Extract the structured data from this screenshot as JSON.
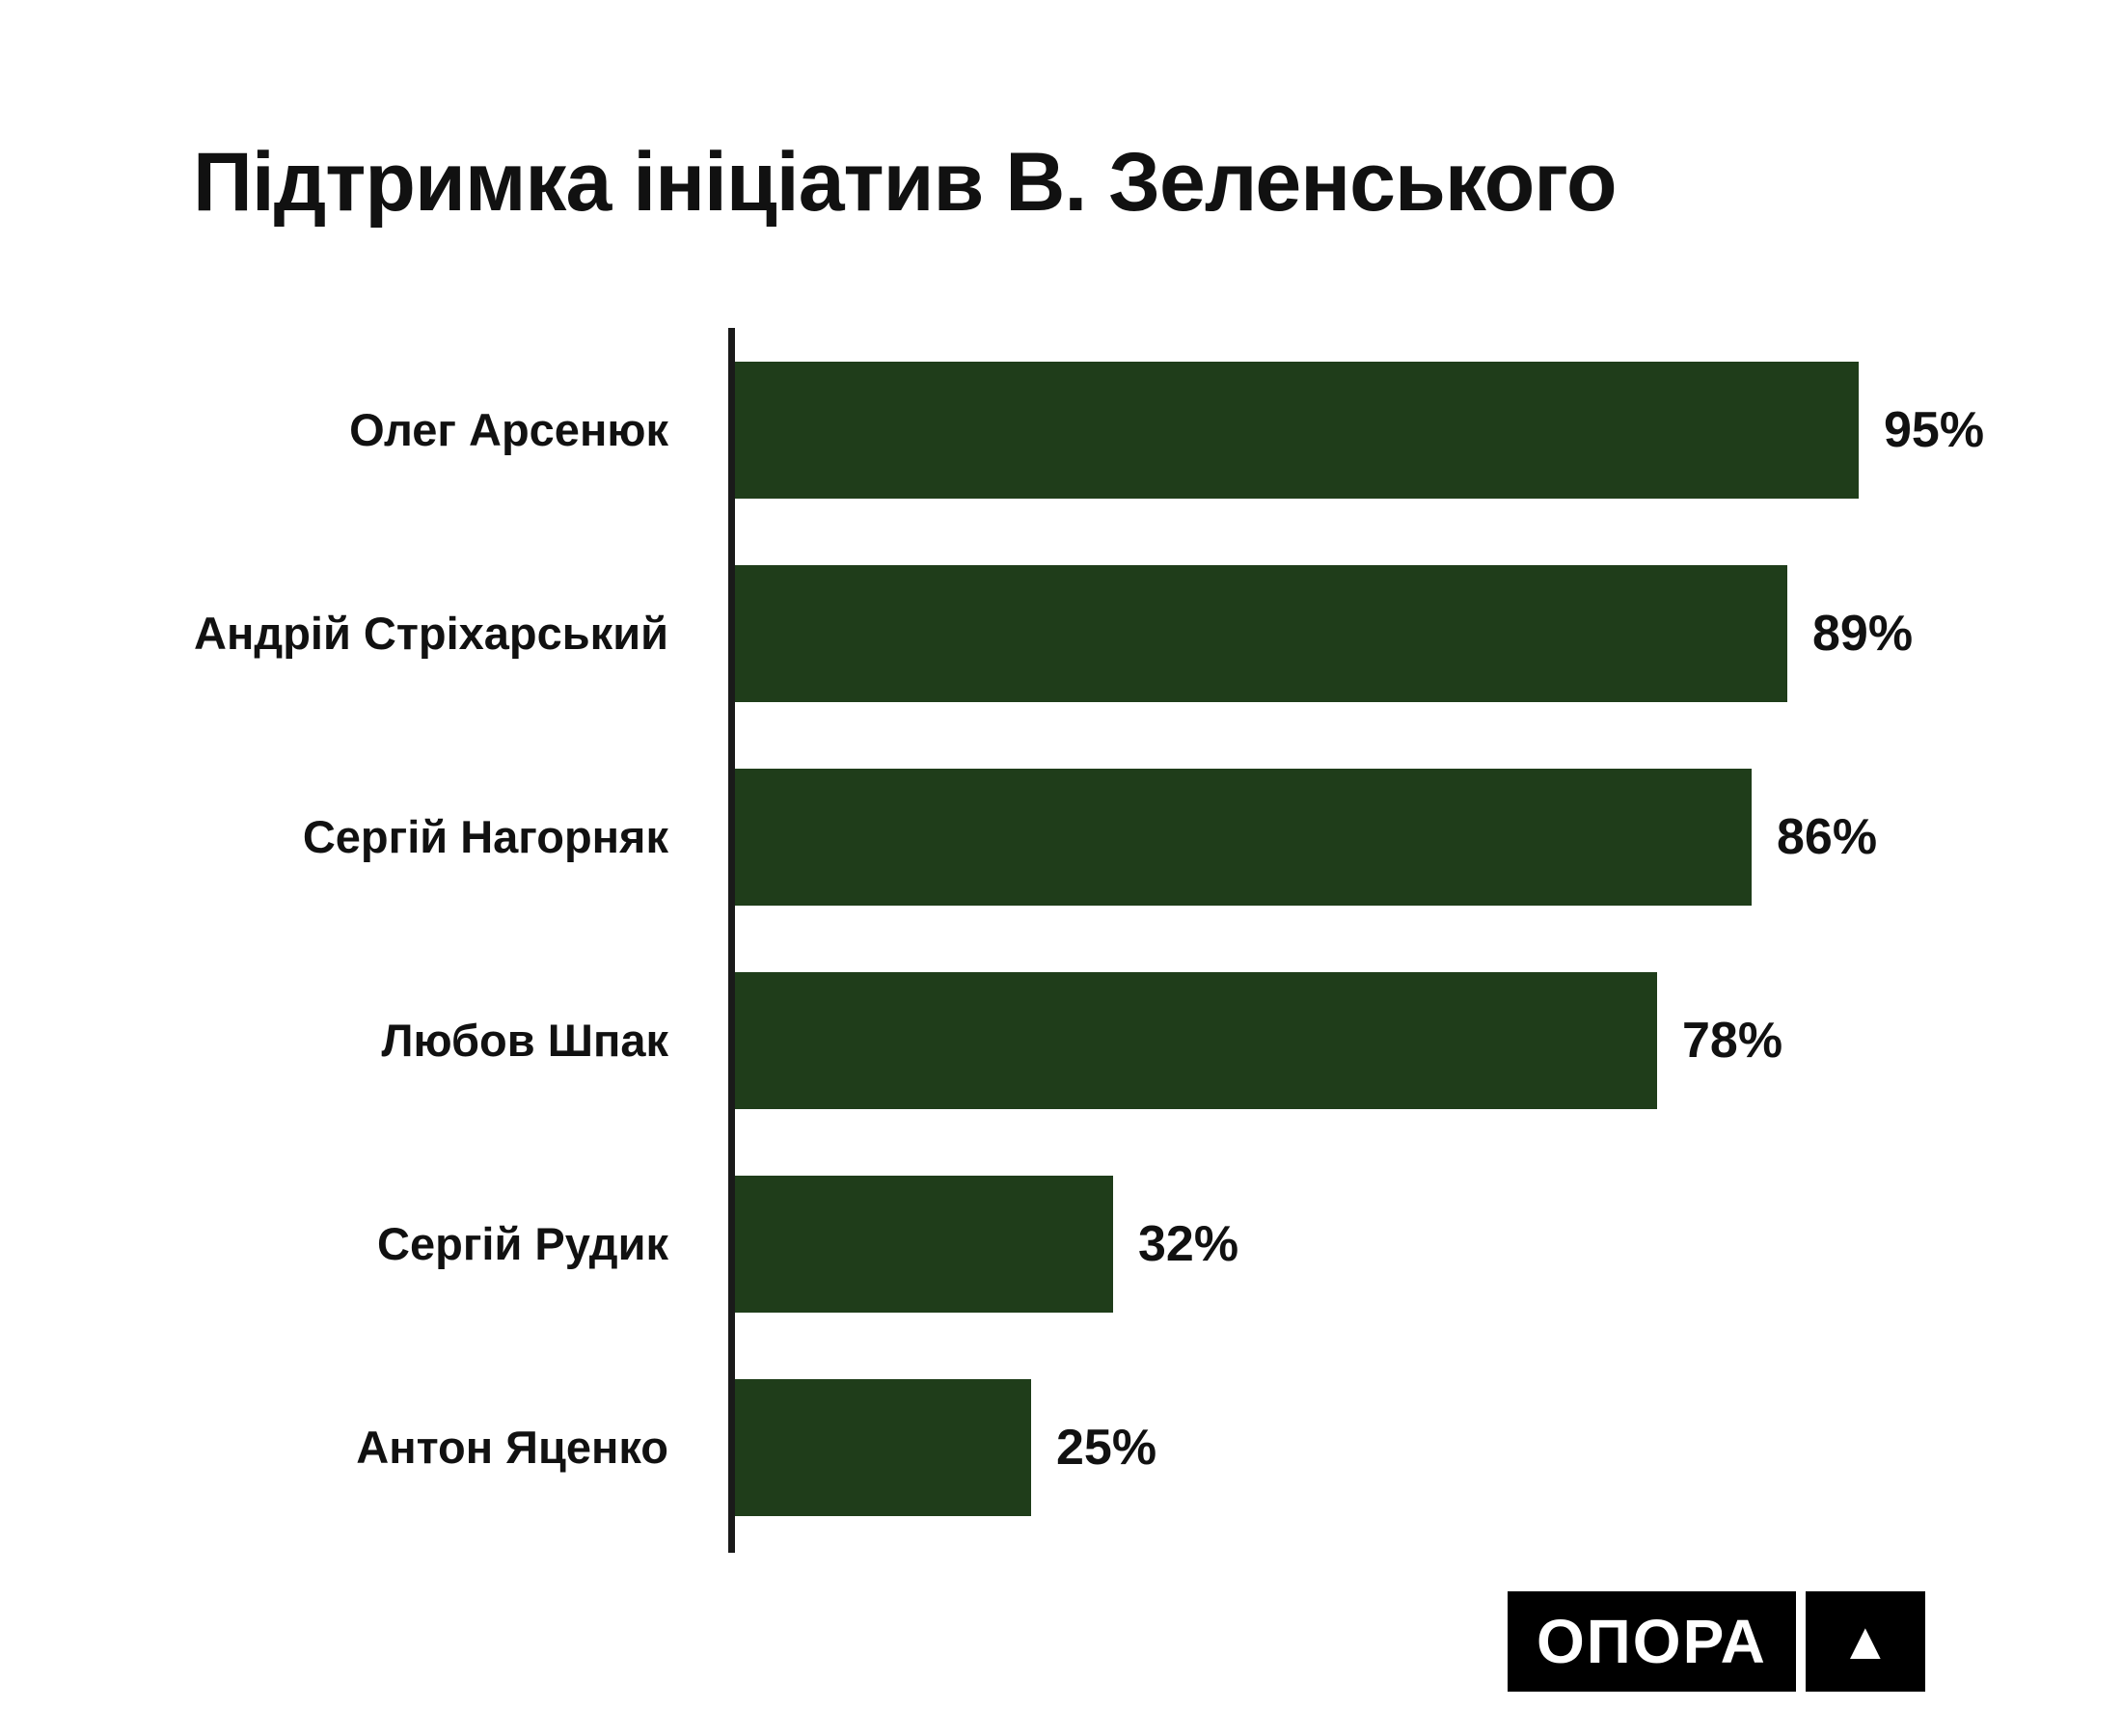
{
  "title": "Підтримка ініціатив В. Зеленського",
  "logo": {
    "text": "ОПОРА",
    "triangle_icon": "▲"
  },
  "colors": {
    "bar": "#1f3d1a",
    "axis": "#1a1a1a",
    "text": "#111111",
    "background": "#ffffff",
    "logo_bg": "#000000",
    "logo_text": "#ffffff"
  },
  "chart_data": {
    "type": "bar",
    "orientation": "horizontal",
    "title": "Підтримка ініціатив В. Зеленського",
    "categories": [
      "Олег Арсенюк",
      "Андрій Стріхарський",
      "Сергій Нагорняк",
      "Любов Шпак",
      "Сергій Рудик",
      "Антон Яценко"
    ],
    "values": [
      95,
      89,
      86,
      78,
      32,
      25
    ],
    "value_labels": [
      "95%",
      "89%",
      "86%",
      "78%",
      "32%",
      "25%"
    ],
    "xlabel": "",
    "ylabel": "",
    "xlim": [
      0,
      100
    ],
    "grid": false,
    "legend": false
  }
}
